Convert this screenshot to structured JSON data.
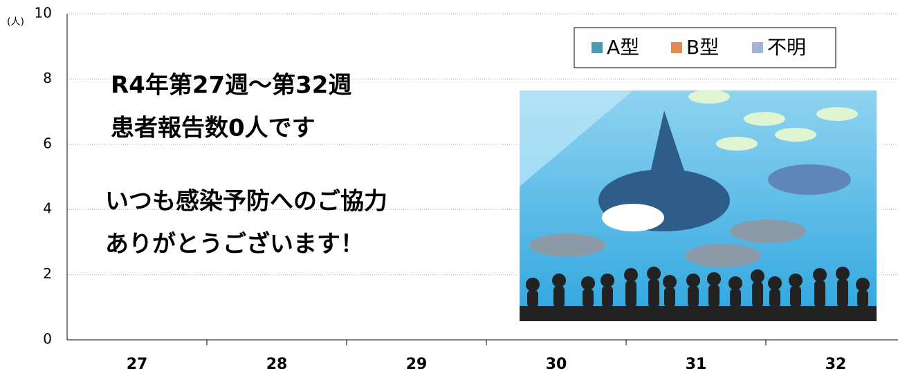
{
  "chart_data": {
    "type": "bar",
    "y_unit": "(人)",
    "categories": [
      "27",
      "28",
      "29",
      "30",
      "31",
      "32"
    ],
    "series": [
      {
        "name": "A型",
        "color": "#4b9bb2",
        "values": [
          0,
          0,
          0,
          0,
          0,
          0
        ]
      },
      {
        "name": "B型",
        "color": "#e08c4e",
        "values": [
          0,
          0,
          0,
          0,
          0,
          0
        ]
      },
      {
        "name": "不明",
        "color": "#a3b3d8",
        "values": [
          0,
          0,
          0,
          0,
          0,
          0
        ]
      }
    ],
    "ylim": [
      0,
      10
    ],
    "yticks": [
      0,
      2,
      4,
      6,
      8,
      10
    ],
    "grid": true,
    "legend": "upper right",
    "annotations": [
      "R4年第27週～第32週",
      "患者報告数0人です",
      "いつも感染予防へのご協力",
      "ありがとうございます！"
    ]
  }
}
